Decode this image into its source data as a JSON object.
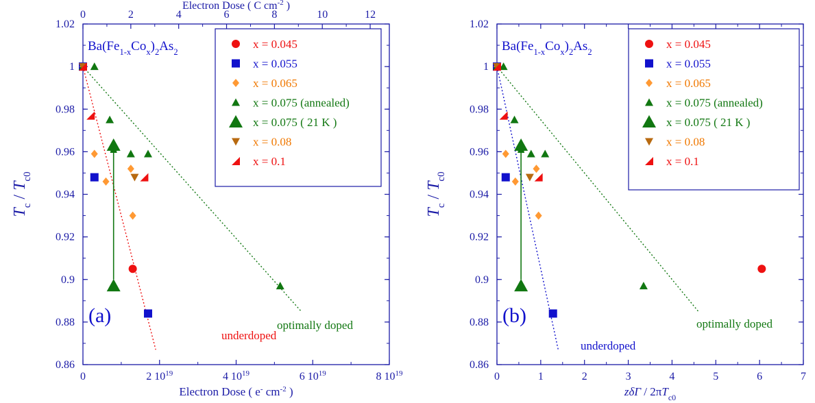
{
  "colors": {
    "axis": "#1a1aa6",
    "red": "#ee1111",
    "blue": "#1111cc",
    "orange": "#ff9933",
    "green": "#117711",
    "brown": "#b86a10",
    "text_red": "#ee1111",
    "text_orange": "#f07800"
  },
  "chart_data": [
    {
      "type": "scatter",
      "panel_label": "(a)",
      "title": "",
      "inset_label": "Ba(Fe1-xCox)2As2",
      "xlabel": "Electron Dose ( e- cm-2 )",
      "ylabel": "Tc / Tc0",
      "top_xlabel": "Electron Dose ( C cm-2 )",
      "xlim": [
        0,
        8e+19
      ],
      "ylim": [
        0.86,
        1.02
      ],
      "top_xlim": [
        0,
        12.8
      ],
      "x_ticks": [
        "0",
        "2 10^19",
        "4 10^19",
        "6 10^19",
        "8 10^19"
      ],
      "y_ticks": [
        "0.86",
        "0.88",
        "0.9",
        "0.92",
        "0.94",
        "0.96",
        "0.98",
        "1",
        "1.02"
      ],
      "top_ticks": [
        "0",
        "2",
        "4",
        "6",
        "8",
        "10",
        "12"
      ],
      "legend_position": "top-right",
      "series": [
        {
          "name": "x = 0.045",
          "marker": "circle",
          "color": "red",
          "x": [
            0,
            1.3e+19
          ],
          "y": [
            1,
            0.905
          ]
        },
        {
          "name": "x = 0.055",
          "marker": "square",
          "color": "blue",
          "x": [
            0,
            3e+18,
            1.7e+19
          ],
          "y": [
            1,
            0.948,
            0.884
          ]
        },
        {
          "name": "x = 0.065",
          "marker": "diamond",
          "color": "orange",
          "x": [
            0,
            3e+18,
            6e+18,
            1.25e+19,
            1.3e+19
          ],
          "y": [
            1,
            0.959,
            0.946,
            0.952,
            0.93
          ]
        },
        {
          "name": "x = 0.075 (annealed)",
          "marker": "triangle-up",
          "color": "green",
          "x": [
            0,
            3e+18,
            7e+18,
            1.25e+19,
            1.7e+19,
            5.15e+19
          ],
          "y": [
            1,
            1,
            0.975,
            0.959,
            0.959,
            0.897
          ]
        },
        {
          "name": "x = 0.075 ( 21 K )",
          "marker": "triangle-up-large",
          "color": "green",
          "x": [
            8e+18,
            8e+18
          ],
          "y": [
            0.963,
            0.897
          ]
        },
        {
          "name": "x = 0.08",
          "marker": "triangle-down",
          "color": "brown",
          "x": [
            0,
            1.35e+19
          ],
          "y": [
            1,
            0.948
          ]
        },
        {
          "name": "x = 0.1",
          "marker": "half-triangle",
          "color": "red",
          "x": [
            0,
            2e+18,
            1.6e+19
          ],
          "y": [
            1,
            0.977,
            0.948
          ]
        }
      ],
      "arrow": {
        "x": 8e+18,
        "from_y": 0.9,
        "to_y": 0.964
      },
      "fit_lines": [
        {
          "label": "underdoped",
          "color": "red",
          "x": [
            0,
            1.9e+19
          ],
          "y": [
            1,
            0.867
          ]
        },
        {
          "label": "optimally doped",
          "color": "green",
          "x": [
            0,
            5.7e+19
          ],
          "y": [
            1,
            0.885
          ]
        }
      ]
    },
    {
      "type": "scatter",
      "panel_label": "(b)",
      "title": "",
      "inset_label": "Ba(Fe1-xCox)2As2",
      "xlabel": "zδΓ / 2πTc0",
      "ylabel": "Tc / Tc0",
      "xlim": [
        0,
        7
      ],
      "ylim": [
        0.86,
        1.02
      ],
      "x_ticks": [
        "0",
        "1",
        "2",
        "3",
        "4",
        "5",
        "6",
        "7"
      ],
      "y_ticks": [
        "0.86",
        "0.88",
        "0.9",
        "0.92",
        "0.94",
        "0.96",
        "0.98",
        "1",
        "1.02"
      ],
      "legend_position": "top-right",
      "series": [
        {
          "name": "x = 0.045",
          "marker": "circle",
          "color": "red",
          "x": [
            0,
            6.05
          ],
          "y": [
            1,
            0.905
          ]
        },
        {
          "name": "x = 0.055",
          "marker": "square",
          "color": "blue",
          "x": [
            0,
            0.2,
            1.28
          ],
          "y": [
            1,
            0.948,
            0.884
          ]
        },
        {
          "name": "x = 0.065",
          "marker": "diamond",
          "color": "orange",
          "x": [
            0,
            0.2,
            0.42,
            0.9,
            0.95
          ],
          "y": [
            1,
            0.959,
            0.946,
            0.952,
            0.93
          ]
        },
        {
          "name": "x = 0.075 (annealed)",
          "marker": "triangle-up",
          "color": "green",
          "x": [
            0,
            0.15,
            0.4,
            0.78,
            1.1,
            3.35
          ],
          "y": [
            1,
            1,
            0.975,
            0.959,
            0.959,
            0.897
          ]
        },
        {
          "name": "x = 0.075 ( 21 K )",
          "marker": "triangle-up-large",
          "color": "green",
          "x": [
            0.55,
            0.55
          ],
          "y": [
            0.963,
            0.897
          ]
        },
        {
          "name": "x = 0.08",
          "marker": "triangle-down",
          "color": "brown",
          "x": [
            0,
            0.75
          ],
          "y": [
            1,
            0.948
          ]
        },
        {
          "name": "x = 0.1",
          "marker": "half-triangle",
          "color": "red",
          "x": [
            0,
            0.15,
            0.95
          ],
          "y": [
            1,
            0.977,
            0.948
          ]
        }
      ],
      "arrow": {
        "x": 0.55,
        "from_y": 0.9,
        "to_y": 0.964
      },
      "fit_lines": [
        {
          "label": "underdoped",
          "color": "blue",
          "x": [
            0,
            1.4
          ],
          "y": [
            1,
            0.867
          ]
        },
        {
          "label": "optimally doped",
          "color": "green",
          "x": [
            0,
            4.6
          ],
          "y": [
            1,
            0.885
          ]
        }
      ]
    }
  ]
}
